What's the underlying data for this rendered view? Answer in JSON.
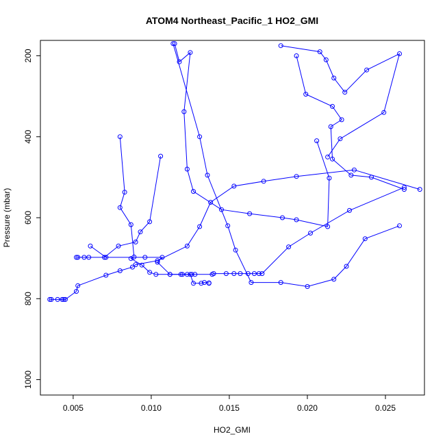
{
  "chart_data": {
    "type": "line",
    "title": "ATOM4 Northeast_Pacific_1 HO2_GMI",
    "xlabel": "HO2_GMI",
    "ylabel": "Pressure (mbar)",
    "xlim": [
      0.0029,
      0.0275
    ],
    "ylim": [
      1038,
      162
    ],
    "y_reversed": true,
    "x_ticks": [
      0.005,
      0.01,
      0.015,
      0.02,
      0.025
    ],
    "x_tick_labels": [
      "0.005",
      "0.010",
      "0.015",
      "0.020",
      "0.025"
    ],
    "y_ticks": [
      200,
      400,
      600,
      800,
      1000
    ],
    "y_tick_labels": [
      "200",
      "400",
      "600",
      "800",
      "1000"
    ],
    "grid": false,
    "legend": "none",
    "color": "#0000ff",
    "markers": "open-circle",
    "series": [
      {
        "x": [
          0.008,
          0.0083,
          0.008,
          0.0087,
          0.0089,
          0.0087,
          0.0094,
          0.0099,
          0.0103,
          0.0112,
          0.0119,
          0.0125,
          0.0127,
          0.0132,
          0.0134,
          0.0137,
          0.0137
        ],
        "y": [
          400,
          537,
          575,
          617,
          697,
          701,
          717,
          735,
          740,
          740,
          740,
          740,
          762,
          762,
          760,
          761,
          762
        ]
      },
      {
        "x": [
          0.0106,
          0.0099,
          0.0093,
          0.009,
          0.0079,
          0.007,
          0.006,
          0.0057,
          0.0053,
          0.0052
        ],
        "y": [
          448,
          610,
          635,
          660,
          670,
          698,
          698,
          698,
          698,
          698
        ]
      },
      {
        "x": [
          0.0061,
          0.0071,
          0.0096,
          0.0107,
          0.0104,
          0.0112,
          0.012,
          0.0123,
          0.0126,
          0.0128,
          0.0139,
          0.014,
          0.0148,
          0.0153,
          0.0157,
          0.0162,
          0.0166,
          0.0169,
          0.0171,
          0.0188,
          0.0202,
          0.0227,
          0.0262
        ],
        "y": [
          670,
          698,
          698,
          698,
          710,
          740,
          740,
          740,
          740,
          740,
          740,
          738,
          738,
          738,
          738,
          738,
          738,
          738,
          738,
          672,
          638,
          582,
          525
        ]
      },
      {
        "x": [
          0.0035,
          0.0036,
          0.004,
          0.0043,
          0.0044,
          0.0045,
          0.0052,
          0.0053,
          0.0071,
          0.008,
          0.0088,
          0.009,
          0.0104,
          0.0123,
          0.0131,
          0.0138,
          0.0153,
          0.0172,
          0.0193,
          0.023,
          0.0272
        ],
        "y": [
          802,
          802,
          802,
          802,
          802,
          802,
          782,
          768,
          742,
          731,
          722,
          716,
          706,
          670,
          622,
          562,
          522,
          510,
          498,
          482,
          530
        ]
      },
      {
        "x": [
          0.0115,
          0.0118,
          0.0125,
          0.0121,
          0.0123,
          0.0127,
          0.0145,
          0.0163,
          0.0184,
          0.0193,
          0.0213,
          0.0214,
          0.0206
        ],
        "y": [
          170,
          215,
          192,
          338,
          480,
          535,
          580,
          590,
          600,
          605,
          622,
          502,
          410
        ]
      },
      {
        "x": [
          0.0114,
          0.0131,
          0.0136,
          0.0149,
          0.0154,
          0.0164,
          0.0183,
          0.02,
          0.0217,
          0.0225,
          0.0237,
          0.0259
        ],
        "y": [
          170,
          400,
          495,
          620,
          680,
          760,
          760,
          770,
          752,
          720,
          652,
          620
        ]
      },
      {
        "x": [
          0.0183,
          0.0208,
          0.0212,
          0.0217,
          0.0224,
          0.0238,
          0.0259,
          0.0249,
          0.0221,
          0.0213
        ],
        "y": [
          175,
          190,
          210,
          255,
          290,
          235,
          195,
          340,
          405,
          450
        ]
      },
      {
        "x": [
          0.0193,
          0.0199,
          0.0216,
          0.0222,
          0.0215,
          0.0216,
          0.0228,
          0.0241,
          0.0262
        ],
        "y": [
          200,
          295,
          325,
          358,
          375,
          455,
          495,
          500,
          530
        ]
      }
    ]
  }
}
